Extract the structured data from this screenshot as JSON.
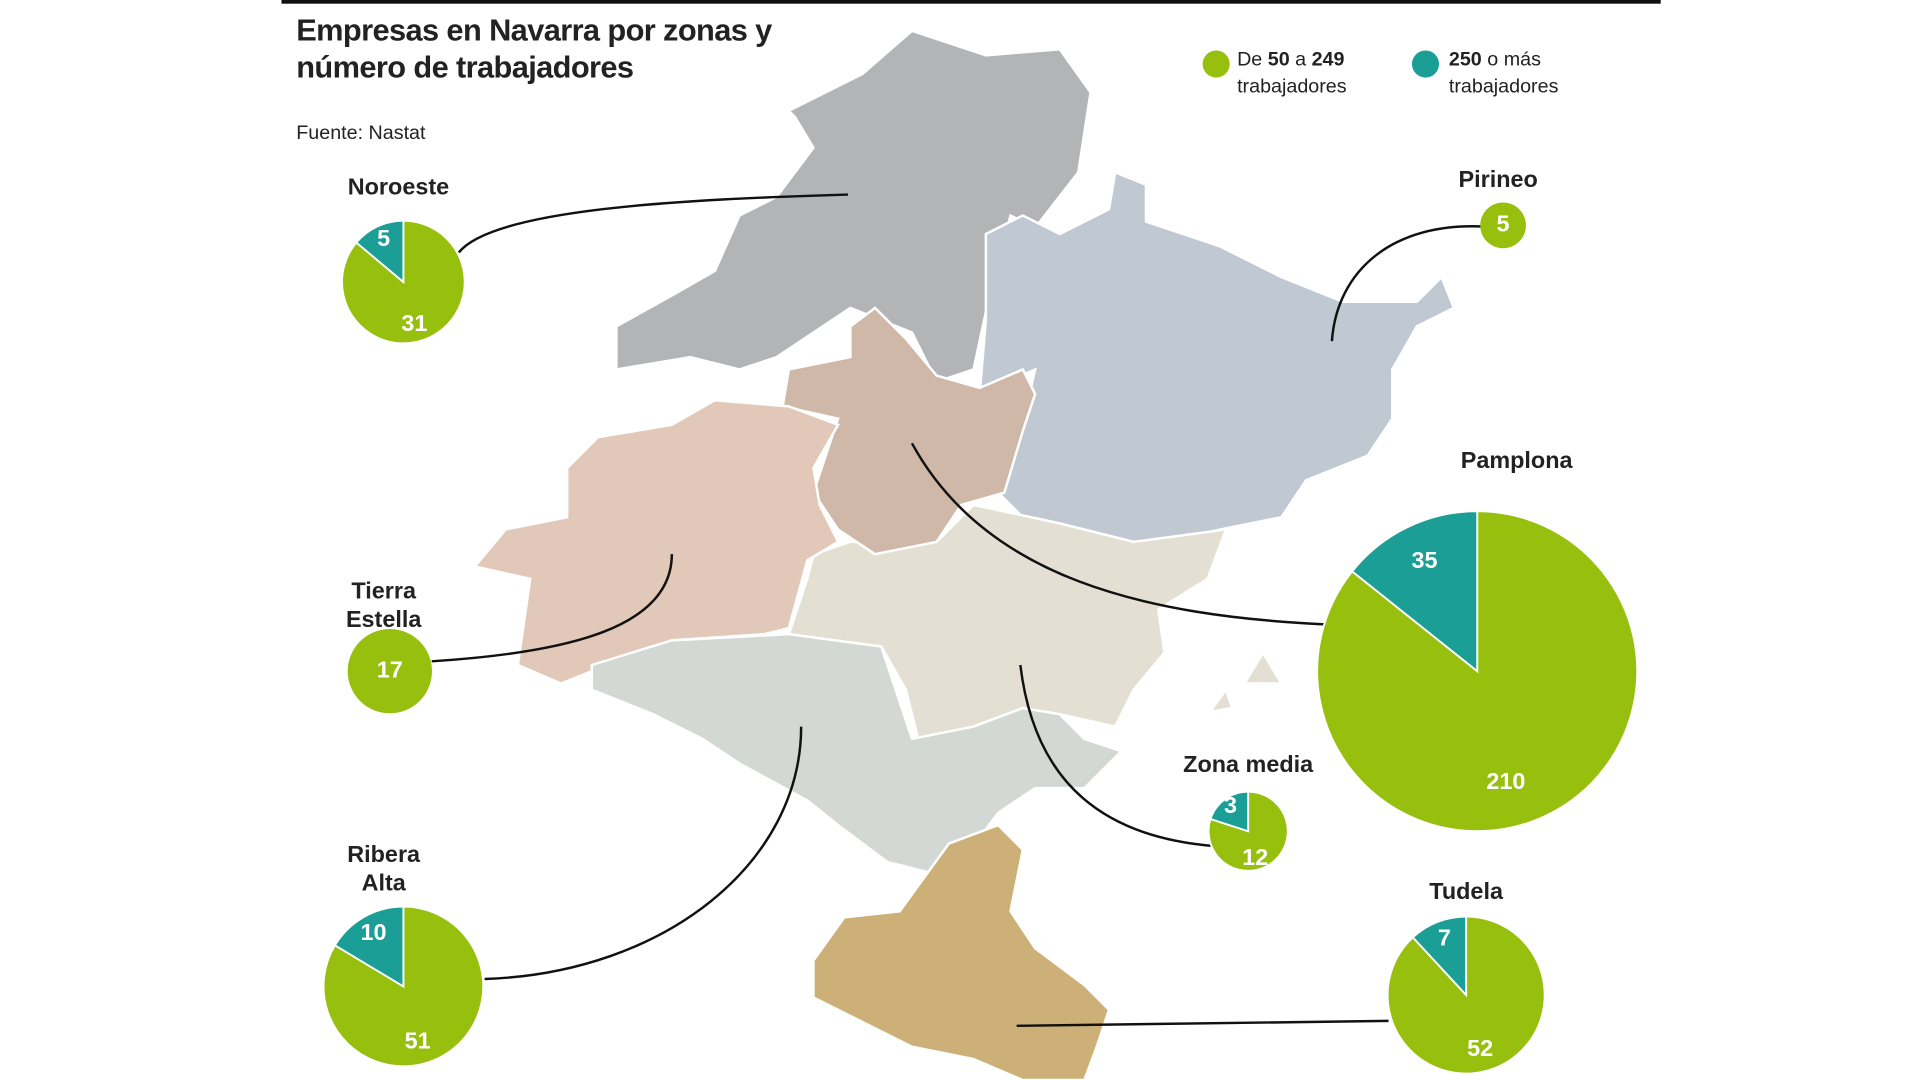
{
  "title": "Empresas en Navarra por zonas y número de trabajadores",
  "source": "Fuente: Nastat",
  "legend": [
    {
      "color": "#97bf0d",
      "text": [
        "De",
        "50",
        "a",
        "249",
        "trabajadores"
      ]
    },
    {
      "color": "#1a9e96",
      "text": [
        "250",
        "o más trabajadores"
      ]
    }
  ],
  "zones": [
    {
      "name": "Noroeste",
      "values": [
        31,
        5
      ]
    },
    {
      "name": "Pirineo",
      "values": [
        5,
        null
      ]
    },
    {
      "name": "Pamplona",
      "values": [
        210,
        35
      ]
    },
    {
      "name": "Tierra Estella",
      "values": [
        17,
        null
      ]
    },
    {
      "name": "Zona media",
      "values": [
        12,
        3
      ]
    },
    {
      "name": "Ribera Alta",
      "values": [
        51,
        10
      ]
    },
    {
      "name": "Tudela",
      "values": [
        52,
        7
      ]
    }
  ]
}
